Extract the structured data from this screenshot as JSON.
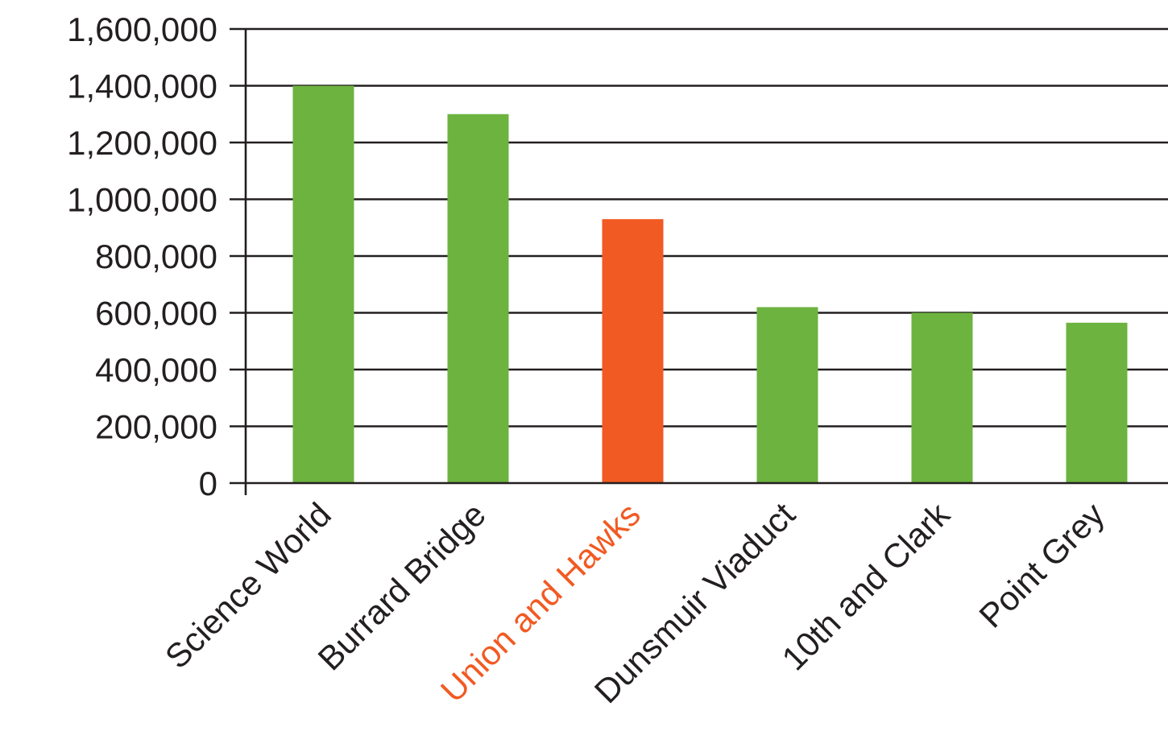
{
  "chart_data": {
    "type": "bar",
    "categories": [
      "Science World",
      "Burrard Bridge",
      "Union and Hawks",
      "Dunsmuir Viaduct",
      "10th and Clark",
      "Point Grey"
    ],
    "values": [
      1400000,
      1300000,
      930000,
      620000,
      600000,
      565000
    ],
    "highlight_category": "Union and Hawks",
    "ylim": [
      0,
      1600000
    ],
    "yticks": [
      0,
      200000,
      400000,
      600000,
      800000,
      1000000,
      1200000,
      1400000,
      1600000
    ],
    "ytick_labels": [
      "0",
      "200,000",
      "400,000",
      "600,000",
      "800,000",
      "1,000,000",
      "1,200,000",
      "1,400,000",
      "1,600,000"
    ],
    "grid": true,
    "colors": {
      "bar": "#6db33f",
      "highlight": "#f15a22",
      "text": "#231f20"
    }
  }
}
